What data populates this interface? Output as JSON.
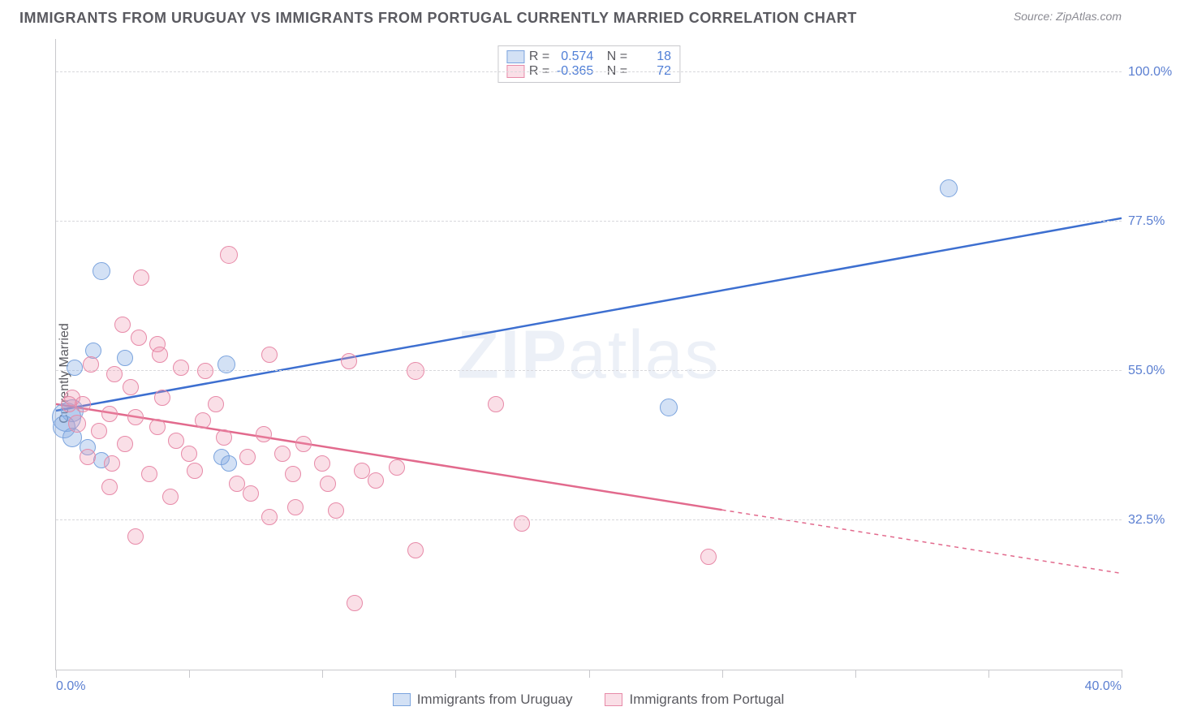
{
  "title": "IMMIGRANTS FROM URUGUAY VS IMMIGRANTS FROM PORTUGAL CURRENTLY MARRIED CORRELATION CHART",
  "source": "Source: ZipAtlas.com",
  "watermark": {
    "bold": "ZIP",
    "light": "atlas"
  },
  "ylabel": "Currently Married",
  "chart": {
    "type": "scatter",
    "xlim": [
      0,
      40
    ],
    "ylim": [
      10,
      105
    ],
    "x_ticks": [
      0,
      5,
      10,
      15,
      20,
      25,
      30,
      35,
      40
    ],
    "y_gridlines": [
      32.5,
      55.0,
      77.5,
      100.0
    ],
    "y_tick_labels": [
      "32.5%",
      "55.0%",
      "77.5%",
      "100.0%"
    ],
    "x_tick_labels_visible": {
      "left": "0.0%",
      "right": "40.0%"
    },
    "background_color": "#ffffff",
    "grid_color": "#d8d8dc",
    "axis_color": "#c8c8cc",
    "marker_radius": 11,
    "series": [
      {
        "name": "Immigrants from Uruguay",
        "color_fill": "rgba(128,168,225,0.35)",
        "color_stroke": "#7ba4de",
        "line_color": "#3d6fd0",
        "line_width": 2.5,
        "R": 0.574,
        "N": 18,
        "trend": {
          "x1": 0,
          "y1": 49,
          "x2": 40,
          "y2": 78,
          "dashed_from_x": null
        },
        "points": [
          {
            "x": 33.5,
            "y": 82.5,
            "r": 11
          },
          {
            "x": 23.0,
            "y": 49.5,
            "r": 11
          },
          {
            "x": 1.7,
            "y": 70.0,
            "r": 11
          },
          {
            "x": 1.4,
            "y": 58.0,
            "r": 10
          },
          {
            "x": 0.7,
            "y": 55.5,
            "r": 10
          },
          {
            "x": 2.6,
            "y": 57.0,
            "r": 10
          },
          {
            "x": 6.4,
            "y": 56.0,
            "r": 11
          },
          {
            "x": 0.6,
            "y": 49.0,
            "r": 14
          },
          {
            "x": 0.4,
            "y": 48.0,
            "r": 18
          },
          {
            "x": 0.3,
            "y": 46.5,
            "r": 14
          },
          {
            "x": 1.2,
            "y": 43.5,
            "r": 10
          },
          {
            "x": 1.7,
            "y": 41.5,
            "r": 10
          },
          {
            "x": 6.2,
            "y": 42.0,
            "r": 10
          },
          {
            "x": 6.5,
            "y": 41.0,
            "r": 10
          },
          {
            "x": 0.6,
            "y": 45.0,
            "r": 12
          }
        ]
      },
      {
        "name": "Immigrants from Portugal",
        "color_fill": "rgba(238,150,175,0.30)",
        "color_stroke": "#e78aa8",
        "line_color": "#e26a8d",
        "line_width": 2.5,
        "R": -0.365,
        "N": 72,
        "trend": {
          "x1": 0,
          "y1": 50,
          "x2": 40,
          "y2": 24.5,
          "dashed_from_x": 25
        },
        "points": [
          {
            "x": 6.5,
            "y": 72.5,
            "r": 11
          },
          {
            "x": 3.2,
            "y": 69.0,
            "r": 10
          },
          {
            "x": 2.5,
            "y": 62.0,
            "r": 10
          },
          {
            "x": 3.1,
            "y": 60.0,
            "r": 10
          },
          {
            "x": 3.8,
            "y": 59.0,
            "r": 10
          },
          {
            "x": 3.9,
            "y": 57.5,
            "r": 10
          },
          {
            "x": 2.2,
            "y": 54.5,
            "r": 10
          },
          {
            "x": 4.7,
            "y": 55.5,
            "r": 10
          },
          {
            "x": 5.6,
            "y": 55.0,
            "r": 10
          },
          {
            "x": 8.0,
            "y": 57.5,
            "r": 10
          },
          {
            "x": 11.0,
            "y": 56.5,
            "r": 10
          },
          {
            "x": 13.5,
            "y": 55.0,
            "r": 11
          },
          {
            "x": 16.5,
            "y": 50.0,
            "r": 10
          },
          {
            "x": 0.6,
            "y": 51.0,
            "r": 10
          },
          {
            "x": 1.0,
            "y": 50.0,
            "r": 10
          },
          {
            "x": 0.8,
            "y": 47.0,
            "r": 11
          },
          {
            "x": 2.0,
            "y": 48.5,
            "r": 10
          },
          {
            "x": 1.6,
            "y": 46.0,
            "r": 10
          },
          {
            "x": 2.6,
            "y": 44.0,
            "r": 10
          },
          {
            "x": 3.0,
            "y": 48.0,
            "r": 10
          },
          {
            "x": 3.8,
            "y": 46.5,
            "r": 10
          },
          {
            "x": 4.5,
            "y": 44.5,
            "r": 10
          },
          {
            "x": 5.0,
            "y": 42.5,
            "r": 10
          },
          {
            "x": 5.5,
            "y": 47.5,
            "r": 10
          },
          {
            "x": 6.3,
            "y": 45.0,
            "r": 10
          },
          {
            "x": 7.2,
            "y": 42.0,
            "r": 10
          },
          {
            "x": 7.8,
            "y": 45.5,
            "r": 10
          },
          {
            "x": 8.5,
            "y": 42.5,
            "r": 10
          },
          {
            "x": 8.9,
            "y": 39.5,
            "r": 10
          },
          {
            "x": 9.3,
            "y": 44.0,
            "r": 10
          },
          {
            "x": 10.0,
            "y": 41.0,
            "r": 10
          },
          {
            "x": 10.2,
            "y": 38.0,
            "r": 10
          },
          {
            "x": 11.5,
            "y": 40.0,
            "r": 10
          },
          {
            "x": 12.0,
            "y": 38.5,
            "r": 10
          },
          {
            "x": 12.8,
            "y": 40.5,
            "r": 10
          },
          {
            "x": 9.0,
            "y": 34.5,
            "r": 10
          },
          {
            "x": 7.3,
            "y": 36.5,
            "r": 10
          },
          {
            "x": 8.0,
            "y": 33.0,
            "r": 10
          },
          {
            "x": 3.5,
            "y": 39.5,
            "r": 10
          },
          {
            "x": 2.1,
            "y": 41.0,
            "r": 10
          },
          {
            "x": 3.0,
            "y": 30.0,
            "r": 10
          },
          {
            "x": 11.2,
            "y": 20.0,
            "r": 10
          },
          {
            "x": 13.5,
            "y": 28.0,
            "r": 10
          },
          {
            "x": 17.5,
            "y": 32.0,
            "r": 10
          },
          {
            "x": 10.5,
            "y": 34.0,
            "r": 10
          },
          {
            "x": 24.5,
            "y": 27.0,
            "r": 10
          },
          {
            "x": 1.2,
            "y": 42.0,
            "r": 10
          },
          {
            "x": 0.5,
            "y": 50.0,
            "r": 10
          },
          {
            "x": 4.0,
            "y": 51.0,
            "r": 10
          },
          {
            "x": 6.0,
            "y": 50.0,
            "r": 10
          },
          {
            "x": 2.8,
            "y": 52.5,
            "r": 10
          },
          {
            "x": 1.3,
            "y": 56.0,
            "r": 10
          },
          {
            "x": 5.2,
            "y": 40.0,
            "r": 10
          },
          {
            "x": 6.8,
            "y": 38.0,
            "r": 10
          },
          {
            "x": 2.0,
            "y": 37.5,
            "r": 10
          },
          {
            "x": 4.3,
            "y": 36.0,
            "r": 10
          }
        ]
      }
    ]
  },
  "legend_top": {
    "rows": [
      {
        "swatch": "blue",
        "r_label": "R =",
        "r_value": "0.574",
        "n_label": "N =",
        "n_value": "18"
      },
      {
        "swatch": "pink",
        "r_label": "R =",
        "r_value": "-0.365",
        "n_label": "N =",
        "n_value": "72"
      }
    ]
  },
  "legend_bottom": {
    "items": [
      {
        "swatch": "blue",
        "label": "Immigrants from Uruguay"
      },
      {
        "swatch": "pink",
        "label": "Immigrants from Portugal"
      }
    ]
  }
}
